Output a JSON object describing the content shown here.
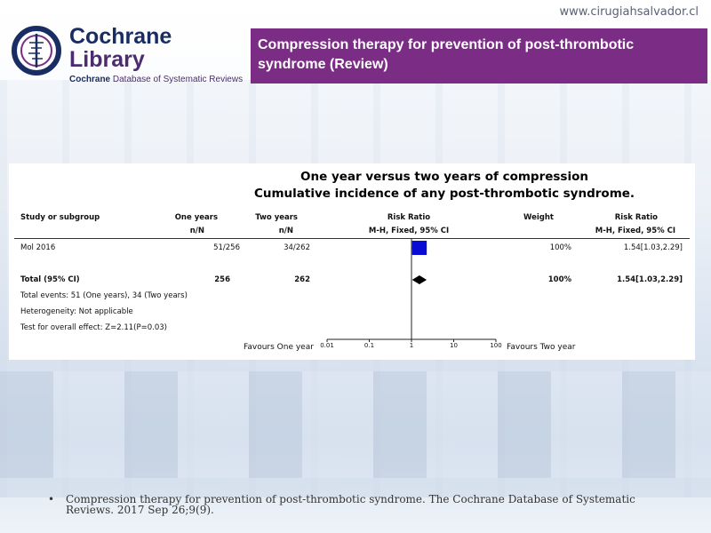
{
  "website": "www.cirugiahsalvador.cl",
  "logo": {
    "title_line1": "Cochrane",
    "title_line2": "Library",
    "sub_brand": "Cochrane",
    "sub_rest": " Database of Systematic Reviews"
  },
  "review_title": "Compression therapy for prevention of post-thrombotic syndrome (Review)",
  "chart_data": {
    "type": "forest",
    "title": "One year versus two years of compression",
    "subtitle": "Cumulative incidence of any post-thrombotic syndrome.",
    "columns": {
      "study": "Study or subgroup",
      "group1": "One years",
      "group1_sub": "n/N",
      "group2": "Two years",
      "group2_sub": "n/N",
      "effect": "Risk Ratio",
      "effect_sub": "M-H, Fixed, 95% CI",
      "weight": "Weight",
      "effect_col": "Risk Ratio",
      "effect_col_sub": "M-H, Fixed, 95% CI"
    },
    "studies": [
      {
        "name": "Mol 2016",
        "g1": "51/256",
        "g2": "34/262",
        "rr": 1.54,
        "lo": 1.03,
        "hi": 2.29,
        "weight": "100%",
        "ci_text": "1.54[1.03,2.29]"
      }
    ],
    "total": {
      "label": "Total (95% CI)",
      "g1": "256",
      "g2": "262",
      "rr": 1.54,
      "lo": 1.03,
      "hi": 2.29,
      "weight": "100%",
      "ci_text": "1.54[1.03,2.29]"
    },
    "notes": [
      "Total events: 51 (One years), 34 (Two years)",
      "Heterogeneity: Not applicable",
      "Test for overall effect: Z=2.11(P=0.03)"
    ],
    "axis": {
      "scale": "log",
      "ticks": [
        0.01,
        0.1,
        1,
        10,
        100
      ],
      "tick_labels": [
        "0.01",
        "0.1",
        "1",
        "10",
        "100"
      ],
      "favours_left": "Favours One year",
      "favours_right": "Favours Two year"
    },
    "colors": {
      "study_box": "#0b0bd6",
      "diamond": "#000000"
    }
  },
  "citation": "Compression therapy for prevention of post-thrombotic syndrome. The Cochrane Database of Systematic Reviews. 2017 Sep 26;9(9)."
}
